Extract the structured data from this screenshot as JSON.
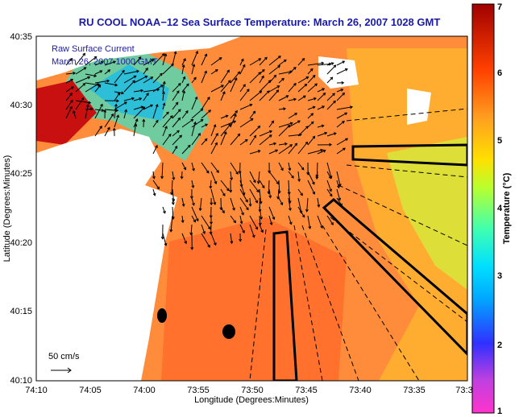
{
  "chart_data": {
    "type": "heatmap",
    "title": "RU COOL  NOAA−12  Sea Surface Temperature:  March 26, 2007 1028 GMT",
    "xlabel": "Longitude (Degrees:Minutes)",
    "ylabel": "Latitude (Degrees:Minutes)",
    "x_ticks": [
      "74:10",
      "74:05",
      "74:00",
      "73:55",
      "73:50",
      "73:45",
      "73:40",
      "73:35",
      "73:3"
    ],
    "y_ticks": [
      "40:35",
      "40:30",
      "40:25",
      "40:20",
      "40:15",
      "40:10"
    ],
    "colorbar": {
      "label": "Temperature (°C)",
      "ticks": [
        "1",
        "2",
        "3",
        "4",
        "5",
        "6",
        "7"
      ],
      "range": [
        1,
        7
      ],
      "colors": [
        "#ff33cc",
        "#b040e0",
        "#3030ff",
        "#00c0ff",
        "#40ffb0",
        "#b8ff30",
        "#ffe000",
        "#ff8a20",
        "#ff3000",
        "#b00000"
      ]
    },
    "inset_text": [
      "Raw Surface Current",
      "March 26, 2007 1000 GMT"
    ],
    "scale_label": "50 cm/s",
    "colors": {
      "land": "#ffffff",
      "water_warm": "#ff8a3d",
      "title": "#1a1aa8"
    }
  }
}
